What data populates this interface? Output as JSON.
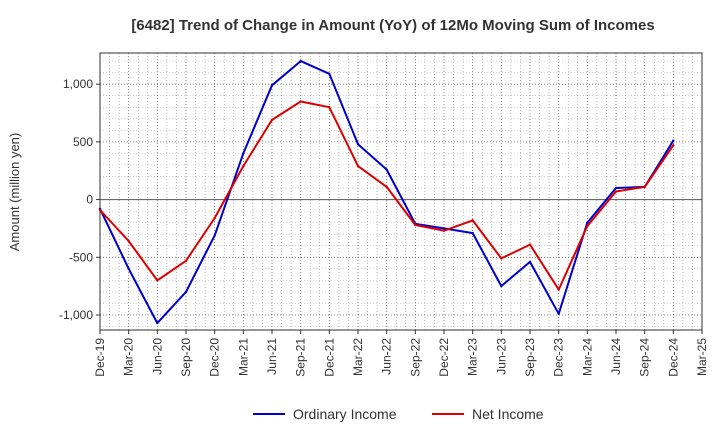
{
  "chart_data": {
    "type": "line",
    "title": "[6482]  Trend of Change in Amount (YoY) of 12Mo Moving Sum of Incomes",
    "xlabel": "",
    "ylabel": "Amount (million yen)",
    "ylim": [
      -1130,
      1270
    ],
    "yticks": [
      1000,
      500,
      0,
      -500,
      -1000
    ],
    "ytick_labels": [
      "1,000",
      "500",
      "0",
      "-500",
      "-1,000"
    ],
    "categories": [
      "Dec-19",
      "Mar-20",
      "Jun-20",
      "Sep-20",
      "Dec-20",
      "Mar-21",
      "Jun-21",
      "Sep-21",
      "Dec-21",
      "Mar-22",
      "Jun-22",
      "Sep-22",
      "Dec-22",
      "Mar-23",
      "Jun-23",
      "Sep-23",
      "Dec-23",
      "Mar-24",
      "Jun-24",
      "Sep-24",
      "Dec-24",
      "Mar-25"
    ],
    "grid": true,
    "legend_position": "bottom",
    "series": [
      {
        "name": "Ordinary Income",
        "color": "#0000cc",
        "values": [
          -80,
          -600,
          -1070,
          -800,
          -310,
          400,
          990,
          1200,
          1090,
          480,
          260,
          -210,
          -250,
          -290,
          -750,
          -540,
          -990,
          -200,
          100,
          110,
          510,
          null
        ]
      },
      {
        "name": "Net Income",
        "color": "#dd0000",
        "values": [
          -90,
          -360,
          -700,
          -530,
          -160,
          290,
          690,
          850,
          800,
          290,
          110,
          -220,
          -270,
          -180,
          -510,
          -390,
          -780,
          -230,
          70,
          110,
          470,
          null
        ]
      }
    ]
  }
}
